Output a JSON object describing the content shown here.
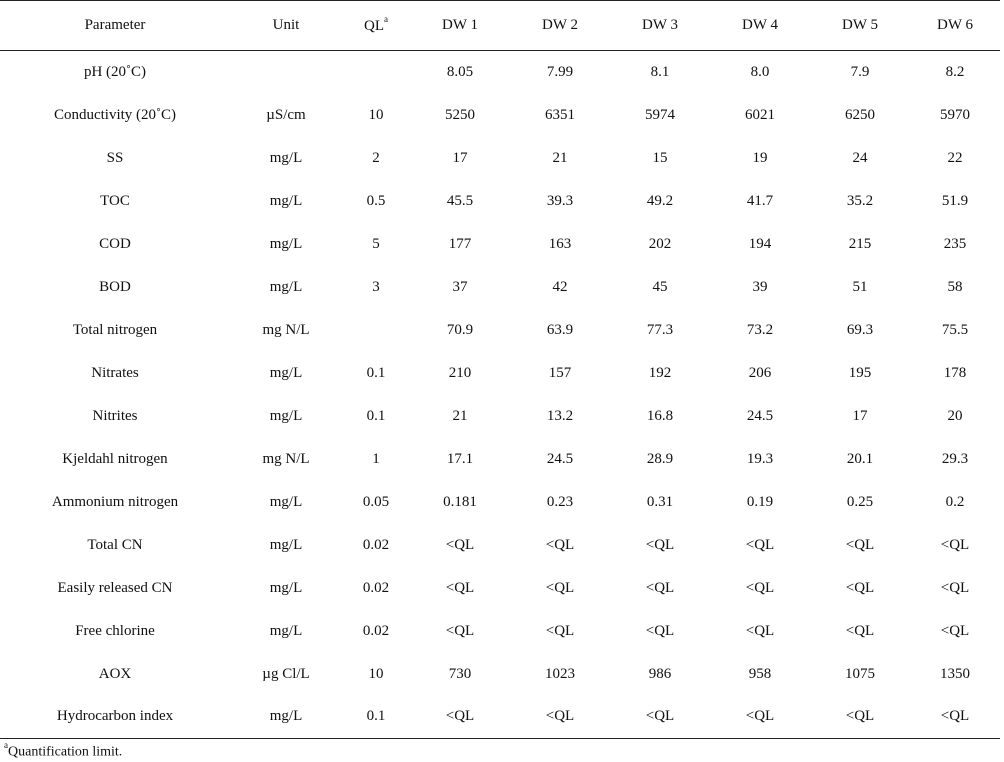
{
  "table": {
    "headers": [
      "Parameter",
      "Unit",
      "QL",
      "DW 1",
      "DW 2",
      "DW 3",
      "DW 4",
      "DW 5",
      "DW 6"
    ],
    "ql_sup": "a",
    "rows": [
      [
        "pH (20˚C)",
        "",
        "",
        "8.05",
        "7.99",
        "8.1",
        "8.0",
        "7.9",
        "8.2"
      ],
      [
        "Conductivity (20˚C)",
        "µS/cm",
        "10",
        "5250",
        "6351",
        "5974",
        "6021",
        "6250",
        "5970"
      ],
      [
        "SS",
        "mg/L",
        "2",
        "17",
        "21",
        "15",
        "19",
        "24",
        "22"
      ],
      [
        "TOC",
        "mg/L",
        "0.5",
        "45.5",
        "39.3",
        "49.2",
        "41.7",
        "35.2",
        "51.9"
      ],
      [
        "COD",
        "mg/L",
        "5",
        "177",
        "163",
        "202",
        "194",
        "215",
        "235"
      ],
      [
        "BOD",
        "mg/L",
        "3",
        "37",
        "42",
        "45",
        "39",
        "51",
        "58"
      ],
      [
        "Total nitrogen",
        "mg N/L",
        "",
        "70.9",
        "63.9",
        "77.3",
        "73.2",
        "69.3",
        "75.5"
      ],
      [
        "Nitrates",
        "mg/L",
        "0.1",
        "210",
        "157",
        "192",
        "206",
        "195",
        "178"
      ],
      [
        "Nitrites",
        "mg/L",
        "0.1",
        "21",
        "13.2",
        "16.8",
        "24.5",
        "17",
        "20"
      ],
      [
        "Kjeldahl nitrogen",
        "mg N/L",
        "1",
        "17.1",
        "24.5",
        "28.9",
        "19.3",
        "20.1",
        "29.3"
      ],
      [
        "Ammonium nitrogen",
        "mg/L",
        "0.05",
        "0.181",
        "0.23",
        "0.31",
        "0.19",
        "0.25",
        "0.2"
      ],
      [
        "Total CN",
        "mg/L",
        "0.02",
        "<QL",
        "<QL",
        "<QL",
        "<QL",
        "<QL",
        "<QL"
      ],
      [
        "Easily released CN",
        "mg/L",
        "0.02",
        "<QL",
        "<QL",
        "<QL",
        "<QL",
        "<QL",
        "<QL"
      ],
      [
        "Free chlorine",
        "mg/L",
        "0.02",
        "<QL",
        "<QL",
        "<QL",
        "<QL",
        "<QL",
        "<QL"
      ],
      [
        "AOX",
        "µg Cl/L",
        "10",
        "730",
        "1023",
        "986",
        "958",
        "1075",
        "1350"
      ],
      [
        "Hydrocarbon index",
        "mg/L",
        "0.1",
        "<QL",
        "<QL",
        "<QL",
        "<QL",
        "<QL",
        "<QL"
      ]
    ]
  },
  "footnote": {
    "sup": "a",
    "text": "Quantification limit."
  }
}
